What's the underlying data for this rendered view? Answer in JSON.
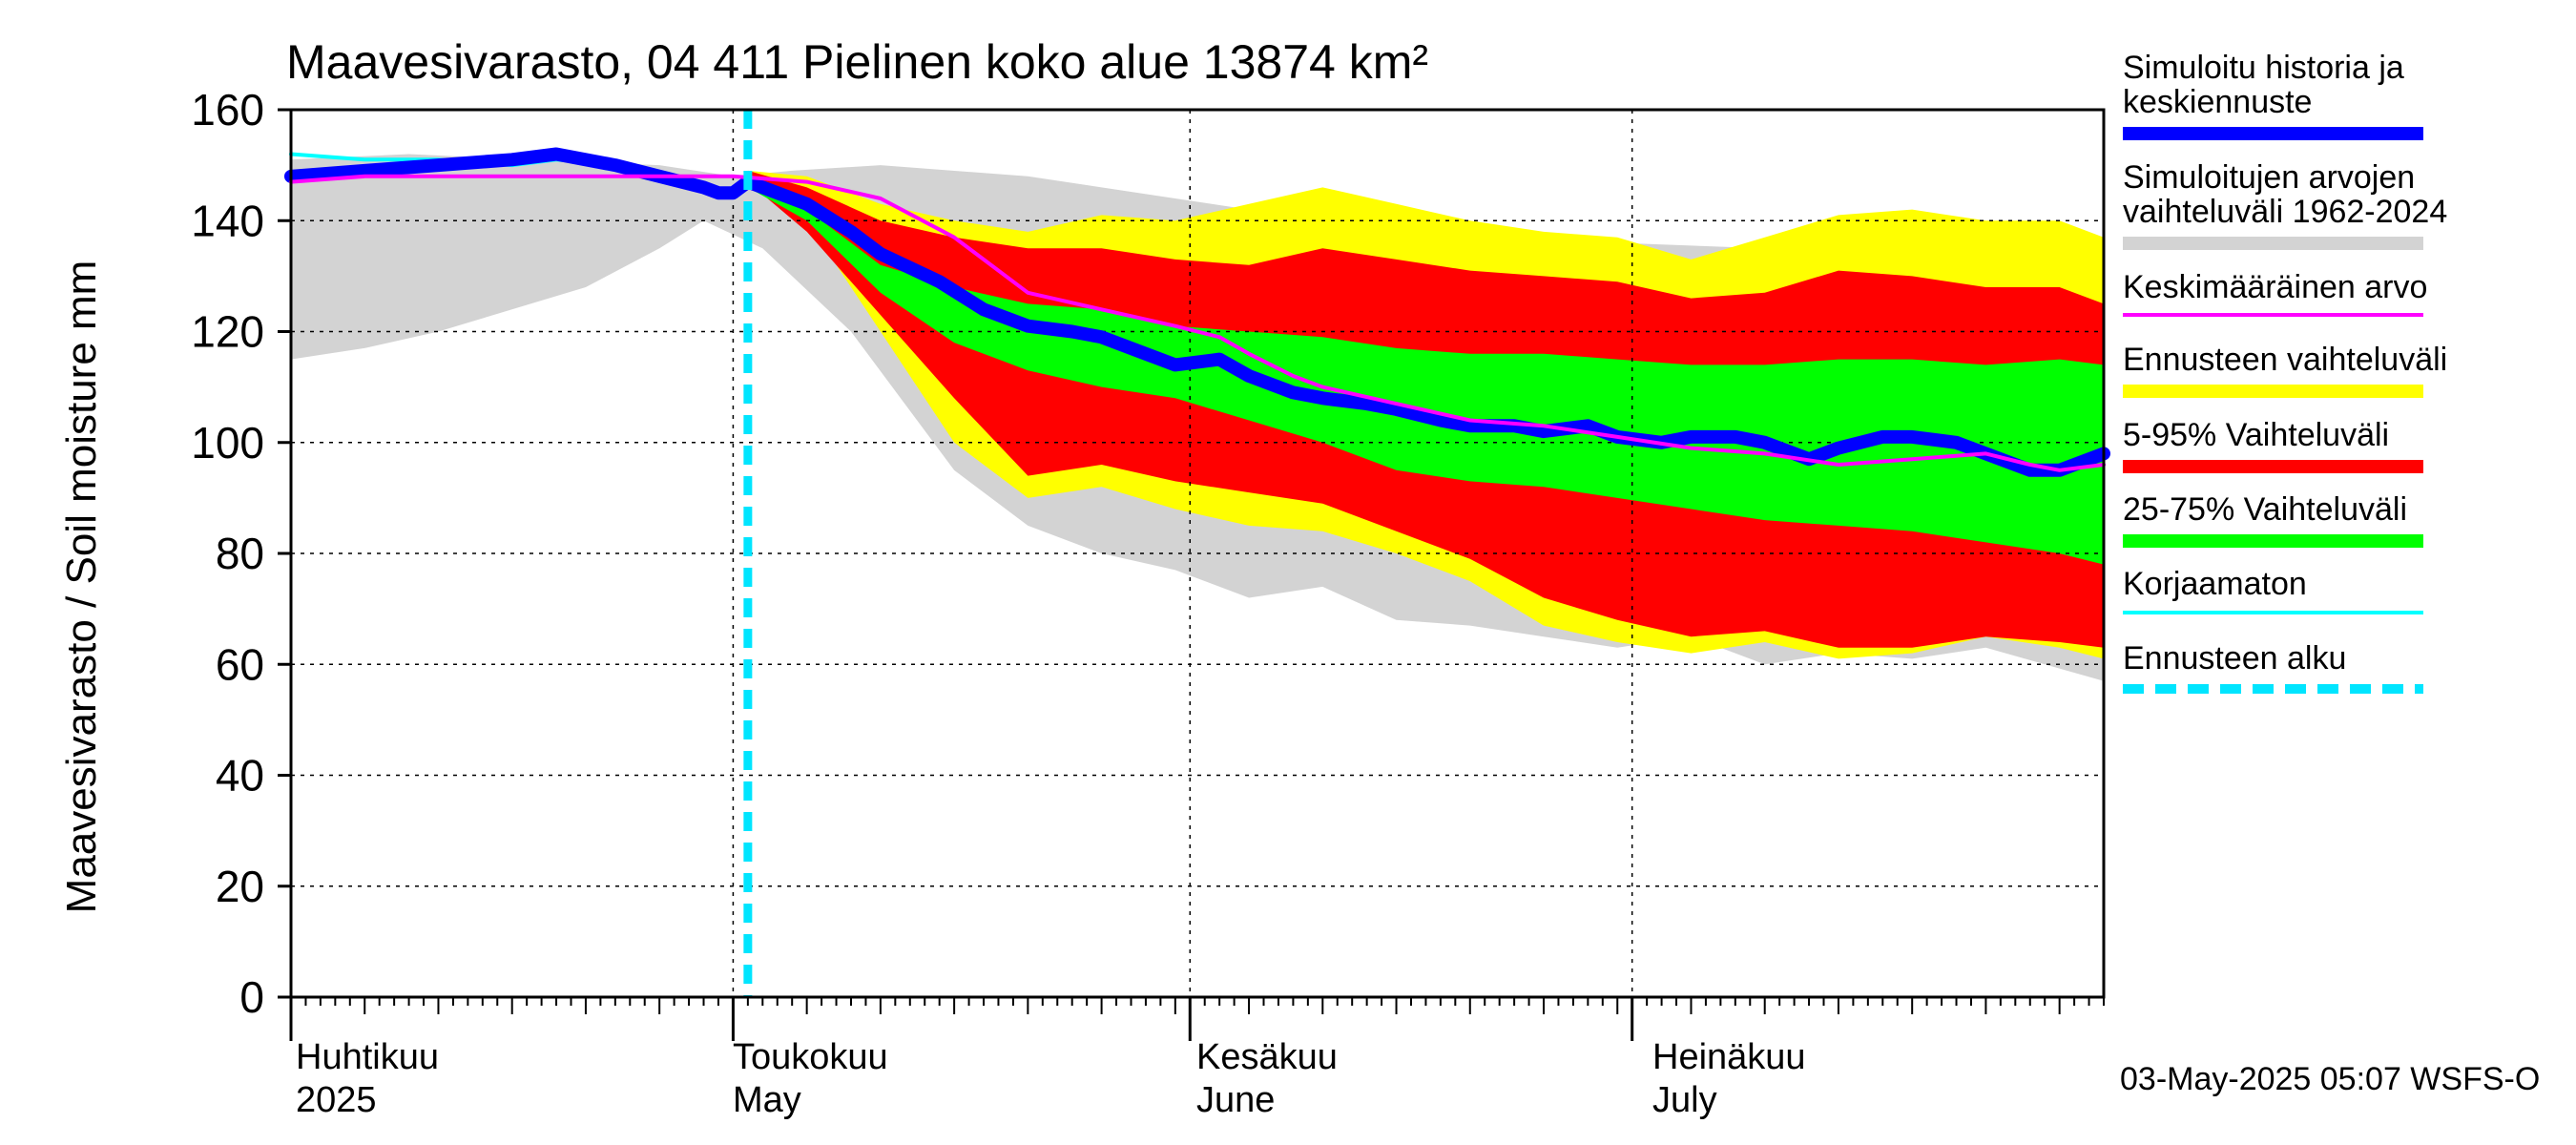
{
  "chart_data": {
    "type": "area",
    "title": "Maavesivarasto, 04 411 Pielinen koko alue 13874 km²",
    "ylabel": "Maavesivarasto / Soil moisture   mm",
    "xlabel": "",
    "ylim": [
      0,
      160
    ],
    "y_ticks": [
      0,
      20,
      40,
      60,
      80,
      100,
      120,
      140,
      160
    ],
    "x_domain_days": [
      0,
      123
    ],
    "grid": true,
    "month_labels": [
      {
        "fi": "Huhtikuu",
        "en": "2025",
        "day": 0
      },
      {
        "fi": "Toukokuu",
        "en": "May",
        "day": 30
      },
      {
        "fi": "Kesäkuu",
        "en": "June",
        "day": 61
      },
      {
        "fi": "Heinäkuu",
        "en": "July",
        "day": 91
      }
    ],
    "forecast_start_day": 31,
    "footer": "03-May-2025 05:07 WSFS-O",
    "colors": {
      "median": "#0000ff",
      "history_range": "#d3d3d3",
      "mean": "#ff00ff",
      "forecast_range": "#ffff00",
      "p5_95": "#ff0000",
      "p25_75": "#00ff00",
      "uncorrected": "#00ffff",
      "forecast_start": "#00e5ff"
    },
    "legend": [
      {
        "label": "Simuloitu historia ja",
        "label2": "keskiennuste",
        "color": "#0000ff",
        "style": "thick"
      },
      {
        "label": "Simuloitujen arvojen",
        "label2": "vaihteluväli 1962-2024",
        "color": "#d3d3d3",
        "style": "thick"
      },
      {
        "label": "Keskimääräinen arvo",
        "label2": "",
        "color": "#ff00ff",
        "style": "thin"
      },
      {
        "label": "Ennusteen vaihteluväli",
        "label2": "",
        "color": "#ffff00",
        "style": "thick"
      },
      {
        "label": "5-95% Vaihteluväli",
        "label2": "",
        "color": "#ff0000",
        "style": "thick"
      },
      {
        "label": "25-75% Vaihteluväli",
        "label2": "",
        "color": "#00ff00",
        "style": "thick"
      },
      {
        "label": "Korjaamaton",
        "label2": "",
        "color": "#00ffff",
        "style": "thin"
      },
      {
        "label": "Ennusteen alku",
        "label2": "",
        "color": "#00e5ff",
        "style": "dashed"
      }
    ],
    "series": [
      {
        "name": "history_range_upper",
        "x": [
          0,
          8,
          16,
          25,
          30,
          34,
          40,
          50,
          60,
          70,
          75,
          80,
          90,
          100,
          105,
          110,
          115,
          123
        ],
        "values": [
          151,
          152,
          151,
          150,
          148,
          149,
          150,
          148,
          144,
          140,
          138,
          139,
          136,
          135,
          140,
          138,
          136,
          134
        ]
      },
      {
        "name": "history_range_lower",
        "x": [
          0,
          5,
          10,
          20,
          25,
          28,
          32,
          38,
          45,
          50,
          55,
          60,
          65,
          70,
          75,
          80,
          85,
          90,
          95,
          100,
          105,
          110,
          115,
          123
        ],
        "values": [
          115,
          117,
          120,
          128,
          135,
          140,
          135,
          120,
          95,
          85,
          80,
          77,
          72,
          74,
          68,
          67,
          65,
          63,
          65,
          60,
          62,
          61,
          63,
          57
        ]
      },
      {
        "name": "forecast_range_upper",
        "x": [
          31,
          35,
          40,
          45,
          50,
          55,
          60,
          65,
          70,
          75,
          80,
          85,
          90,
          95,
          100,
          105,
          110,
          115,
          120,
          123
        ],
        "values": [
          149,
          148,
          143,
          140,
          138,
          141,
          140,
          143,
          146,
          143,
          140,
          138,
          137,
          133,
          137,
          141,
          142,
          140,
          140,
          137
        ]
      },
      {
        "name": "forecast_range_lower",
        "x": [
          31,
          35,
          40,
          45,
          50,
          55,
          60,
          65,
          70,
          75,
          80,
          85,
          90,
          95,
          100,
          105,
          110,
          115,
          120,
          123
        ],
        "values": [
          147,
          140,
          120,
          100,
          90,
          92,
          88,
          85,
          84,
          80,
          75,
          67,
          64,
          62,
          64,
          61,
          62,
          65,
          63,
          61
        ]
      },
      {
        "name": "p95",
        "x": [
          31,
          35,
          40,
          45,
          50,
          55,
          60,
          65,
          70,
          75,
          80,
          85,
          90,
          95,
          100,
          105,
          110,
          115,
          120,
          123
        ],
        "values": [
          149,
          146,
          140,
          137,
          135,
          135,
          133,
          132,
          135,
          133,
          131,
          130,
          129,
          126,
          127,
          131,
          130,
          128,
          128,
          125
        ]
      },
      {
        "name": "p5",
        "x": [
          31,
          35,
          40,
          45,
          50,
          55,
          60,
          65,
          70,
          75,
          80,
          85,
          90,
          95,
          100,
          105,
          110,
          115,
          120,
          123
        ],
        "values": [
          147,
          138,
          123,
          108,
          94,
          96,
          93,
          91,
          89,
          84,
          79,
          72,
          68,
          65,
          66,
          63,
          63,
          65,
          64,
          63
        ]
      },
      {
        "name": "p75",
        "x": [
          31,
          35,
          40,
          45,
          50,
          55,
          60,
          65,
          70,
          75,
          80,
          85,
          90,
          95,
          100,
          105,
          110,
          115,
          120,
          123
        ],
        "values": [
          148,
          142,
          132,
          128,
          125,
          124,
          121,
          120,
          119,
          117,
          116,
          116,
          115,
          114,
          114,
          115,
          115,
          114,
          115,
          114
        ]
      },
      {
        "name": "p25",
        "x": [
          31,
          35,
          40,
          45,
          50,
          55,
          60,
          65,
          70,
          75,
          80,
          85,
          90,
          95,
          100,
          105,
          110,
          115,
          120,
          123
        ],
        "values": [
          146,
          140,
          127,
          118,
          113,
          110,
          108,
          104,
          100,
          95,
          93,
          92,
          90,
          88,
          86,
          85,
          84,
          82,
          80,
          78
        ]
      },
      {
        "name": "median",
        "x": [
          0,
          5,
          10,
          15,
          18,
          22,
          25,
          28,
          29,
          30,
          31,
          33,
          35,
          38,
          40,
          44,
          47,
          50,
          53,
          55,
          58,
          60,
          63,
          65,
          68,
          70,
          73,
          75,
          78,
          80,
          83,
          85,
          88,
          90,
          93,
          95,
          98,
          100,
          103,
          105,
          108,
          110,
          113,
          115,
          118,
          120,
          123
        ],
        "values": [
          148,
          149,
          150,
          151,
          152,
          150,
          148,
          146,
          145,
          145,
          147,
          145,
          143,
          138,
          134,
          129,
          124,
          121,
          120,
          119,
          116,
          114,
          115,
          112,
          109,
          108,
          107,
          106,
          104,
          103,
          103,
          102,
          103,
          101,
          100,
          101,
          101,
          100,
          97,
          99,
          101,
          101,
          100,
          98,
          95,
          95,
          98
        ]
      },
      {
        "name": "mean",
        "x": [
          0,
          5,
          10,
          15,
          20,
          25,
          30,
          35,
          40,
          45,
          50,
          55,
          60,
          63,
          65,
          68,
          70,
          75,
          80,
          85,
          90,
          95,
          100,
          105,
          110,
          115,
          118,
          120,
          123
        ],
        "values": [
          147,
          148,
          148,
          148,
          148,
          148,
          148,
          147,
          144,
          137,
          127,
          124,
          121,
          119,
          116,
          112,
          110,
          107,
          104,
          103,
          101,
          99,
          98,
          96,
          97,
          98,
          96,
          95,
          96
        ]
      },
      {
        "name": "uncorrected",
        "x": [
          0,
          5,
          10,
          15,
          18,
          22,
          25,
          28,
          29,
          30,
          31
        ],
        "values": [
          152,
          151,
          151,
          150,
          151,
          150,
          148,
          146,
          145,
          145,
          147
        ]
      }
    ]
  }
}
